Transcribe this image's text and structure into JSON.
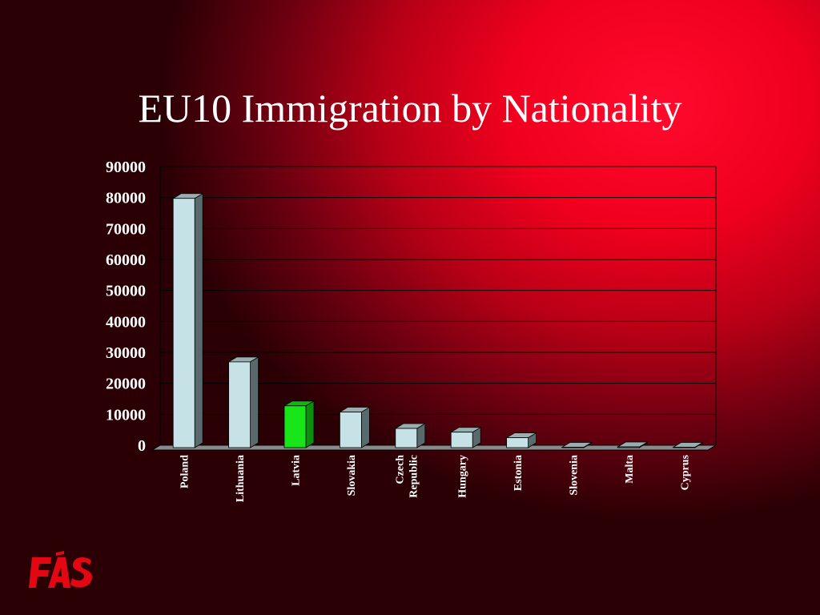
{
  "slide": {
    "title": "EU10 Immigration by Nationality"
  },
  "logo": {
    "text": "FÁS",
    "color": "#e30613"
  },
  "chart_data": {
    "type": "bar",
    "style": "3d-column",
    "categories": [
      "Poland",
      "Lithuania",
      "Latvia",
      "Slovakia",
      "Czech Republic",
      "Hungary",
      "Estonia",
      "Slovenia",
      "Malta",
      "Cyprus"
    ],
    "category_labels": [
      [
        "Poland"
      ],
      [
        "Lithuania"
      ],
      [
        "Latvia"
      ],
      [
        "Slovakia"
      ],
      [
        "Czech",
        "Republic"
      ],
      [
        "Hungary"
      ],
      [
        "Estonia"
      ],
      [
        "Slovenia"
      ],
      [
        "Malta"
      ],
      [
        "Cyprus"
      ]
    ],
    "values": [
      80500,
      27700,
      13500,
      11500,
      6200,
      5000,
      3200,
      150,
      250,
      150
    ],
    "ylim": [
      0,
      90000
    ],
    "yticks": [
      0,
      10000,
      20000,
      30000,
      40000,
      50000,
      60000,
      70000,
      80000,
      90000
    ],
    "grid": true,
    "legend": "none",
    "colors": {
      "bar": "#c6e2e6",
      "highlight_bar": "#19e619",
      "highlight_category": "Latvia",
      "gridline": "#000000",
      "text": "#ffffff"
    }
  }
}
